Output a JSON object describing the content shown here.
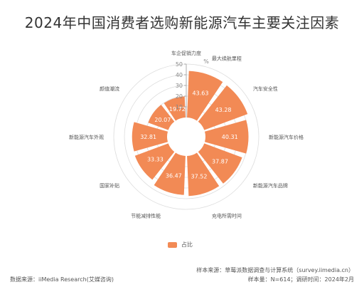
{
  "title": "2024年中国消费者选购新能源汽车主要关注因素",
  "colors": {
    "bar": "#F28A55",
    "grid": "#dddddd",
    "axis": "#999999",
    "label": "#555555"
  },
  "legend": {
    "label": "占比"
  },
  "footer": {
    "source": "数据来源：iiMedia Research(艾媒咨询)",
    "sample_source": "样本来源：草莓派数据调查与计算系统（survey.iimedia.cn）",
    "sample_size": "样本量：N=614；调研时间：2024年2月"
  },
  "chart_data": {
    "type": "bar",
    "polar": true,
    "title": "2024年中国消费者选购新能源汽车主要关注因素",
    "unit": "%",
    "radial_ticks": [
      10,
      20,
      30,
      40,
      50
    ],
    "rmax": 50,
    "categories": [
      "最大续航里程",
      "汽车安全性",
      "新能源汽车价格",
      "新能源汽车品牌",
      "充电所需时间",
      "节能减排性能",
      "国家补贴",
      "新能源汽车外观",
      "颜值潮流",
      "车企促销力度"
    ],
    "series": [
      {
        "name": "占比",
        "values": [
          43.63,
          43.28,
          40.31,
          37.87,
          37.52,
          36.47,
          33.33,
          32.81,
          20.07,
          19.72
        ]
      }
    ]
  }
}
